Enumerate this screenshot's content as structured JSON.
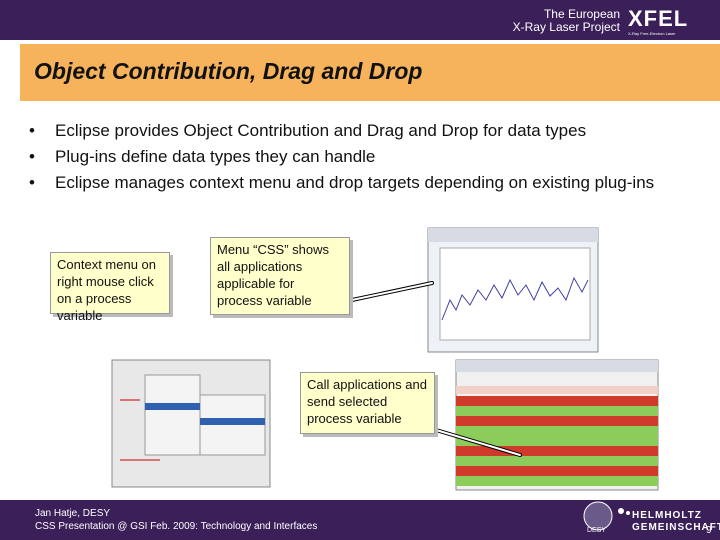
{
  "header": {
    "org_line1": "The European",
    "org_line2": "X-Ray Laser Project",
    "logo": "XFEL",
    "logo_subtitle": "X-Ray Free-Electron Laser"
  },
  "title": "Object Contribution, Drag and Drop",
  "bullets": [
    "Eclipse provides Object Contribution and Drag and Drop for data types",
    "Plug-ins define data types they can handle",
    "Eclipse manages context menu and drop targets depending on existing plug-ins"
  ],
  "callouts": [
    "Context menu on right mouse click on a process variable",
    "Menu “CSS” shows all applications applicable for process variable",
    "Call applications and send selected process variable"
  ],
  "footer": {
    "author": "Jan Hatje, DESY",
    "event": "CSS Presentation @ GSI Feb. 2009: Technology and Interfaces",
    "logo_desy": "DESY",
    "helmholtz_line1": "HELMHOLTZ",
    "helmholtz_line2": "GEMEINSCHAFT",
    "page": "9"
  }
}
